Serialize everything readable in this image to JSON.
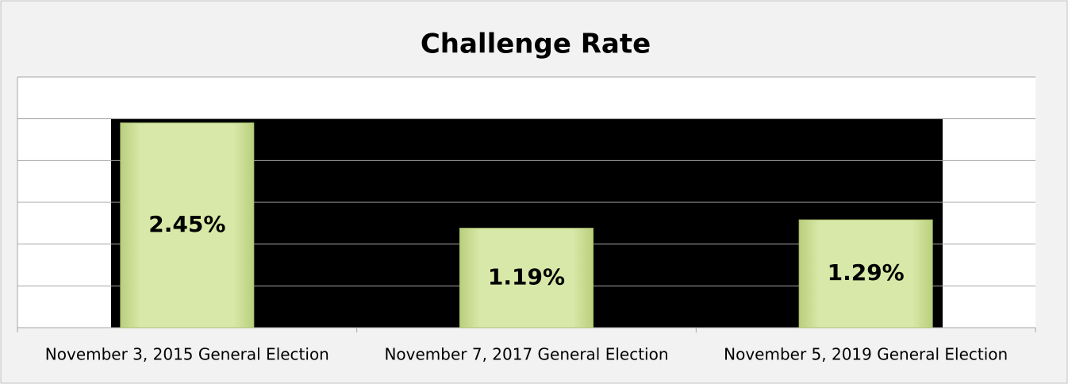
{
  "chart_data": {
    "type": "bar",
    "title": "Challenge Rate",
    "categories": [
      "November 3, 2015 General Election",
      "November 7, 2017 General Election",
      "November 5, 2019 General Election"
    ],
    "values": [
      2.45,
      1.19,
      1.29
    ],
    "value_labels": [
      "2.45%",
      "1.19%",
      "1.29%"
    ],
    "color": "#d3e4a0",
    "ylim": [
      0,
      3
    ],
    "yticks": [
      0,
      0.5,
      1,
      1.5,
      2,
      2.5,
      3
    ],
    "grid": true
  }
}
